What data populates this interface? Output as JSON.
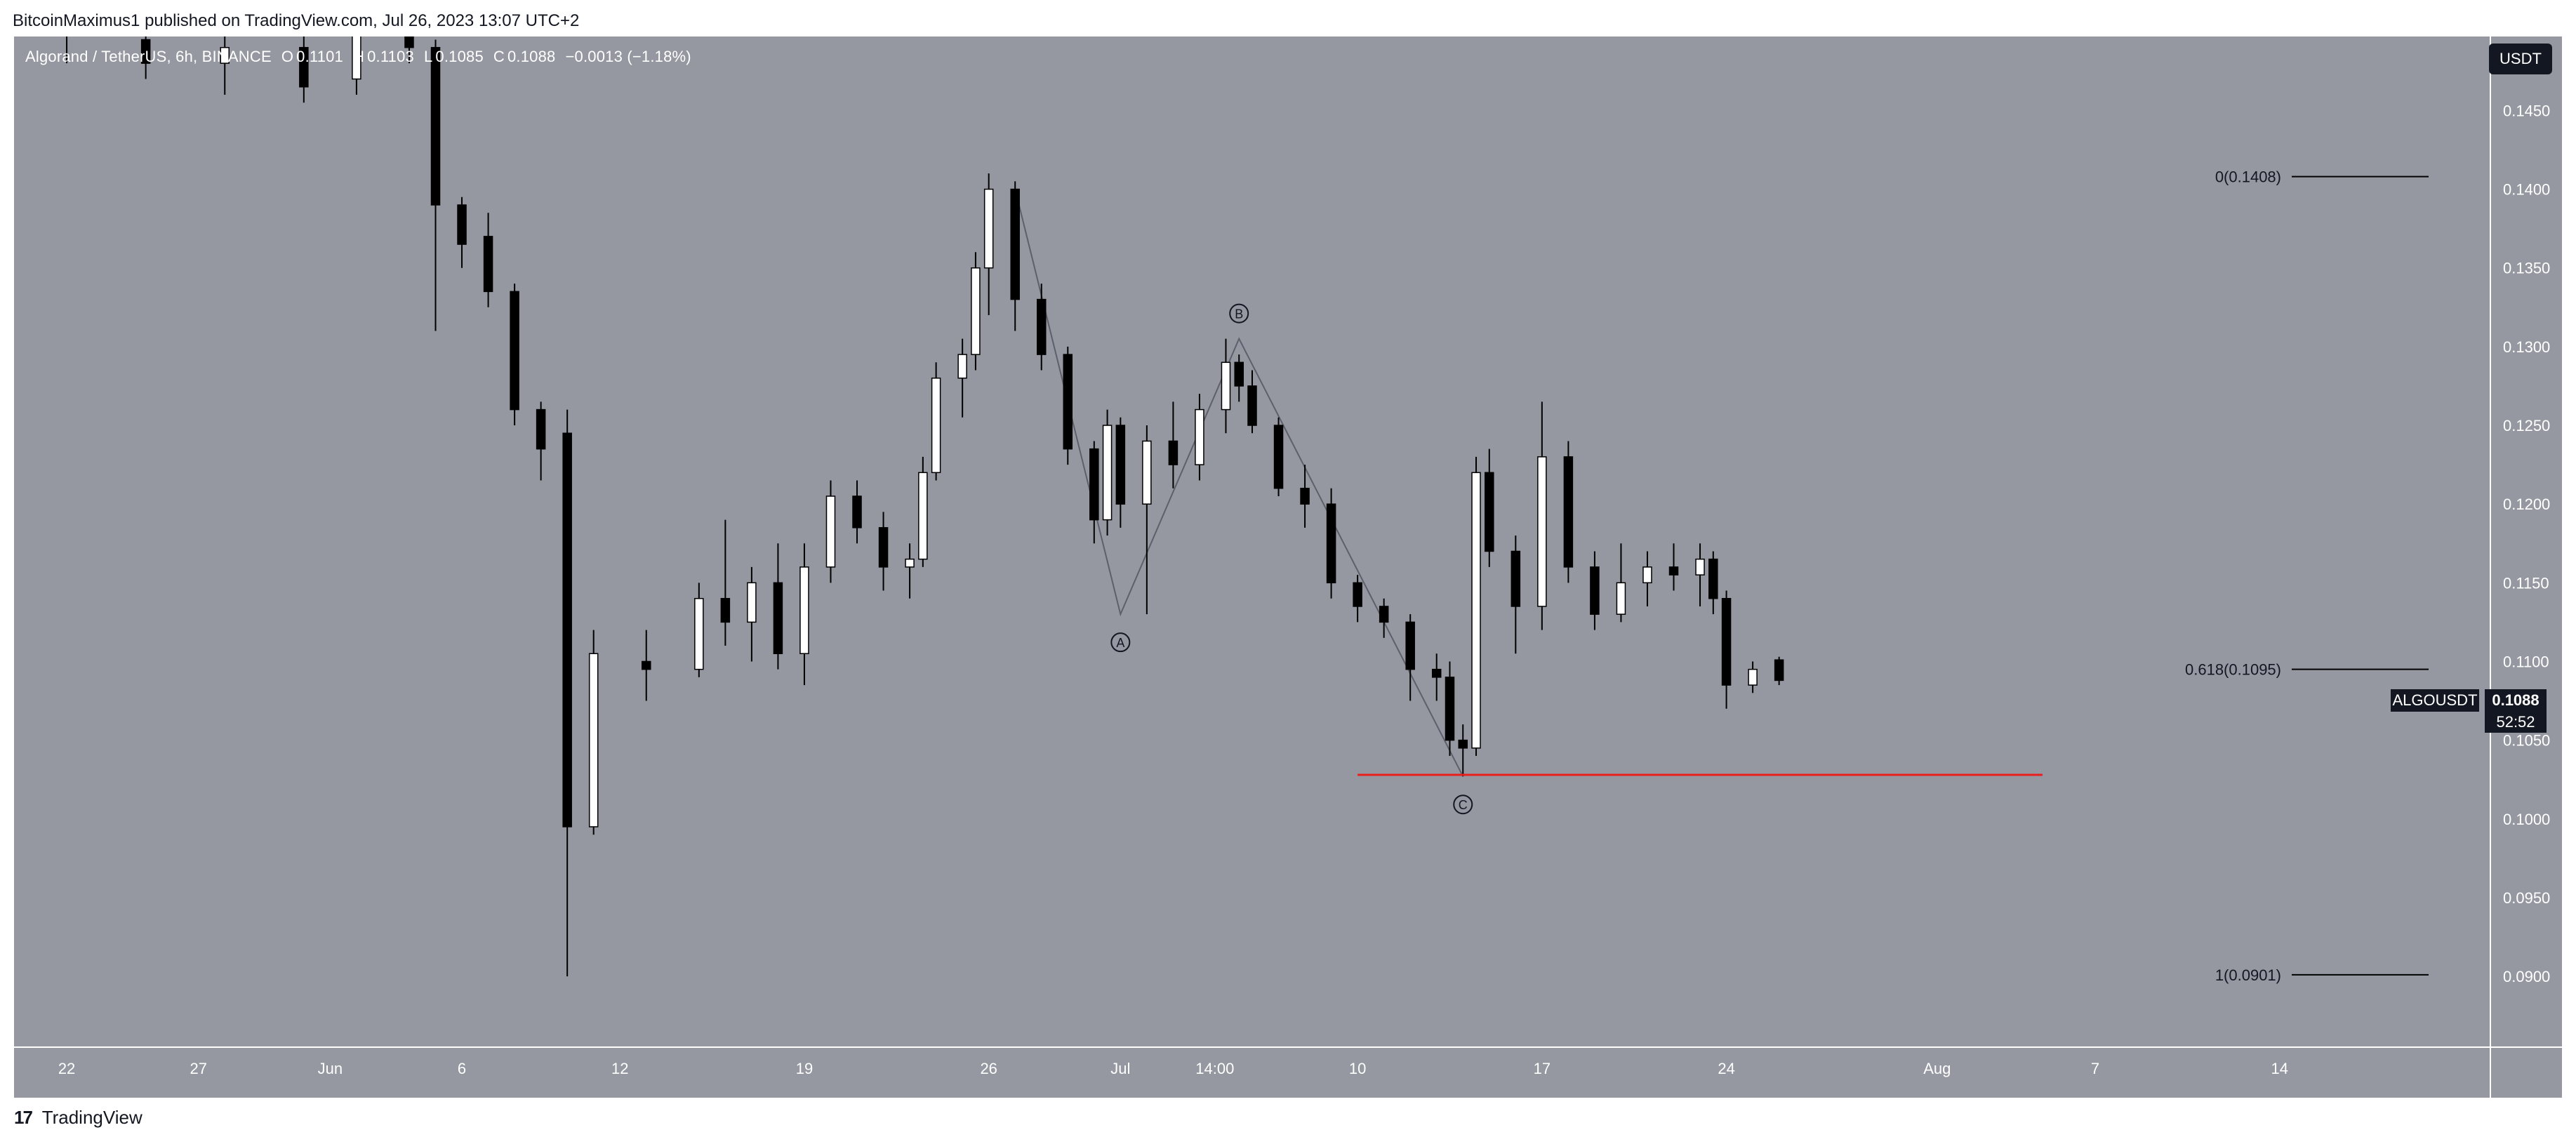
{
  "header": {
    "published_by": "BitcoinMaximus1 published on TradingView.com, Jul 26, 2023 13:07 UTC+2"
  },
  "legend": {
    "symbol": "Algorand / TetherUS, 6h, BINANCE",
    "open_label": "O",
    "open_value": "0.1101",
    "high_label": "H",
    "high_value": "0.1103",
    "low_label": "L",
    "low_value": "0.1085",
    "close_label": "C",
    "close_value": "0.1088",
    "change": "−0.0013 (−1.18%)"
  },
  "currency_badge": "USDT",
  "price_tag": {
    "symbol": "ALGOUSDT",
    "price": "0.1088",
    "countdown": "52:52"
  },
  "footer": {
    "brand": "TradingView",
    "logo_glyph": "17"
  },
  "colors": {
    "background": "#9598a1",
    "candle_up": "#ffffff",
    "candle_down": "#000000",
    "support_line": "#e91e1e",
    "wave_line": "#5d606b"
  },
  "chart_data": {
    "type": "candlestick",
    "title": "",
    "interval": "6h",
    "y_axis": {
      "ticks": [
        "0.1450",
        "0.1400",
        "0.1350",
        "0.1300",
        "0.1250",
        "0.1200",
        "0.1150",
        "0.1100",
        "0.1050",
        "0.1000",
        "0.0950",
        "0.0900"
      ],
      "range": [
        0.0855,
        0.1497
      ]
    },
    "x_axis": {
      "ticks": [
        "22",
        "27",
        "Jun",
        "6",
        "12",
        "19",
        "26",
        "Jul",
        "14:00",
        "10",
        "17",
        "24",
        "Aug",
        "7",
        "14"
      ],
      "range": [
        "2023-05-20",
        "2023-08-22"
      ]
    },
    "candles": [
      {
        "date": "2023-05-22",
        "open": 0.151,
        "high": 0.153,
        "low": 0.148,
        "close": 0.15
      },
      {
        "date": "2023-05-25",
        "open": 0.1495,
        "high": 0.151,
        "low": 0.147,
        "close": 0.148
      },
      {
        "date": "2023-05-28",
        "open": 0.148,
        "high": 0.15,
        "low": 0.146,
        "close": 0.149
      },
      {
        "date": "2023-05-31",
        "open": 0.149,
        "high": 0.1505,
        "low": 0.1455,
        "close": 0.1465
      },
      {
        "date": "2023-06-02",
        "open": 0.147,
        "high": 0.151,
        "low": 0.146,
        "close": 0.15
      },
      {
        "date": "2023-06-04",
        "open": 0.15,
        "high": 0.152,
        "low": 0.148,
        "close": 0.149
      },
      {
        "date": "2023-06-05",
        "open": 0.149,
        "high": 0.1495,
        "low": 0.131,
        "close": 0.139
      },
      {
        "date": "2023-06-06",
        "open": 0.139,
        "high": 0.1395,
        "low": 0.135,
        "close": 0.1365
      },
      {
        "date": "2023-06-07",
        "open": 0.137,
        "high": 0.1385,
        "low": 0.1325,
        "close": 0.1335
      },
      {
        "date": "2023-06-08",
        "open": 0.1335,
        "high": 0.134,
        "low": 0.125,
        "close": 0.126
      },
      {
        "date": "2023-06-09",
        "open": 0.126,
        "high": 0.1265,
        "low": 0.1215,
        "close": 0.1235
      },
      {
        "date": "2023-06-10",
        "open": 0.1245,
        "high": 0.126,
        "low": 0.09,
        "close": 0.0995
      },
      {
        "date": "2023-06-11",
        "open": 0.0995,
        "high": 0.112,
        "low": 0.099,
        "close": 0.1105
      },
      {
        "date": "2023-06-13",
        "open": 0.11,
        "high": 0.112,
        "low": 0.1075,
        "close": 0.1095
      },
      {
        "date": "2023-06-15",
        "open": 0.1095,
        "high": 0.115,
        "low": 0.109,
        "close": 0.114
      },
      {
        "date": "2023-06-16",
        "open": 0.114,
        "high": 0.119,
        "low": 0.111,
        "close": 0.1125
      },
      {
        "date": "2023-06-17",
        "open": 0.1125,
        "high": 0.116,
        "low": 0.11,
        "close": 0.115
      },
      {
        "date": "2023-06-18",
        "open": 0.115,
        "high": 0.1175,
        "low": 0.1095,
        "close": 0.1105
      },
      {
        "date": "2023-06-19",
        "open": 0.1105,
        "high": 0.1175,
        "low": 0.1085,
        "close": 0.116
      },
      {
        "date": "2023-06-20",
        "open": 0.116,
        "high": 0.1215,
        "low": 0.115,
        "close": 0.1205
      },
      {
        "date": "2023-06-21",
        "open": 0.1205,
        "high": 0.1215,
        "low": 0.1175,
        "close": 0.1185
      },
      {
        "date": "2023-06-22",
        "open": 0.1185,
        "high": 0.1195,
        "low": 0.1145,
        "close": 0.116
      },
      {
        "date": "2023-06-23",
        "open": 0.116,
        "high": 0.1175,
        "low": 0.114,
        "close": 0.1165
      },
      {
        "date": "2023-06-23T12",
        "open": 0.1165,
        "high": 0.123,
        "low": 0.116,
        "close": 0.122
      },
      {
        "date": "2023-06-24",
        "open": 0.122,
        "high": 0.129,
        "low": 0.1215,
        "close": 0.128
      },
      {
        "date": "2023-06-25",
        "open": 0.128,
        "high": 0.1305,
        "low": 0.1255,
        "close": 0.1295
      },
      {
        "date": "2023-06-25T12",
        "open": 0.1295,
        "high": 0.136,
        "low": 0.1285,
        "close": 0.135
      },
      {
        "date": "2023-06-26",
        "open": 0.135,
        "high": 0.141,
        "low": 0.132,
        "close": 0.14
      },
      {
        "date": "2023-06-27",
        "open": 0.14,
        "high": 0.1405,
        "low": 0.131,
        "close": 0.133
      },
      {
        "date": "2023-06-28",
        "open": 0.133,
        "high": 0.134,
        "low": 0.1285,
        "close": 0.1295
      },
      {
        "date": "2023-06-29",
        "open": 0.1295,
        "high": 0.13,
        "low": 0.1225,
        "close": 0.1235
      },
      {
        "date": "2023-06-30",
        "open": 0.1235,
        "high": 0.124,
        "low": 0.1175,
        "close": 0.119
      },
      {
        "date": "2023-06-30T12",
        "open": 0.119,
        "high": 0.126,
        "low": 0.118,
        "close": 0.125
      },
      {
        "date": "2023-07-01",
        "open": 0.125,
        "high": 0.1255,
        "low": 0.1185,
        "close": 0.12
      },
      {
        "date": "2023-07-02",
        "open": 0.12,
        "high": 0.125,
        "low": 0.113,
        "close": 0.124
      },
      {
        "date": "2023-07-03",
        "open": 0.124,
        "high": 0.1265,
        "low": 0.121,
        "close": 0.1225
      },
      {
        "date": "2023-07-04",
        "open": 0.1225,
        "high": 0.127,
        "low": 0.1215,
        "close": 0.126
      },
      {
        "date": "2023-07-05",
        "open": 0.126,
        "high": 0.1305,
        "low": 0.1245,
        "close": 0.129
      },
      {
        "date": "2023-07-05T12",
        "open": 0.129,
        "high": 0.1295,
        "low": 0.1265,
        "close": 0.1275
      },
      {
        "date": "2023-07-06",
        "open": 0.1275,
        "high": 0.1285,
        "low": 0.1245,
        "close": 0.125
      },
      {
        "date": "2023-07-07",
        "open": 0.125,
        "high": 0.1255,
        "low": 0.1205,
        "close": 0.121
      },
      {
        "date": "2023-07-08",
        "open": 0.121,
        "high": 0.1225,
        "low": 0.1185,
        "close": 0.12
      },
      {
        "date": "2023-07-09",
        "open": 0.12,
        "high": 0.121,
        "low": 0.114,
        "close": 0.115
      },
      {
        "date": "2023-07-10",
        "open": 0.115,
        "high": 0.1155,
        "low": 0.1125,
        "close": 0.1135
      },
      {
        "date": "2023-07-11",
        "open": 0.1135,
        "high": 0.114,
        "low": 0.1115,
        "close": 0.1125
      },
      {
        "date": "2023-07-12",
        "open": 0.1125,
        "high": 0.113,
        "low": 0.1075,
        "close": 0.1095
      },
      {
        "date": "2023-07-13",
        "open": 0.1095,
        "high": 0.1105,
        "low": 0.1075,
        "close": 0.109
      },
      {
        "date": "2023-07-13T12",
        "open": 0.109,
        "high": 0.11,
        "low": 0.104,
        "close": 0.105
      },
      {
        "date": "2023-07-14",
        "open": 0.105,
        "high": 0.106,
        "low": 0.1027,
        "close": 0.1045
      },
      {
        "date": "2023-07-14T12",
        "open": 0.1045,
        "high": 0.123,
        "low": 0.104,
        "close": 0.122
      },
      {
        "date": "2023-07-15",
        "open": 0.122,
        "high": 0.1235,
        "low": 0.116,
        "close": 0.117
      },
      {
        "date": "2023-07-16",
        "open": 0.117,
        "high": 0.118,
        "low": 0.1105,
        "close": 0.1135
      },
      {
        "date": "2023-07-17",
        "open": 0.1135,
        "high": 0.1265,
        "low": 0.112,
        "close": 0.123
      },
      {
        "date": "2023-07-18",
        "open": 0.123,
        "high": 0.124,
        "low": 0.115,
        "close": 0.116
      },
      {
        "date": "2023-07-19",
        "open": 0.116,
        "high": 0.117,
        "low": 0.112,
        "close": 0.113
      },
      {
        "date": "2023-07-20",
        "open": 0.113,
        "high": 0.1175,
        "low": 0.1125,
        "close": 0.115
      },
      {
        "date": "2023-07-21",
        "open": 0.115,
        "high": 0.117,
        "low": 0.1135,
        "close": 0.116
      },
      {
        "date": "2023-07-22",
        "open": 0.116,
        "high": 0.1175,
        "low": 0.1145,
        "close": 0.1155
      },
      {
        "date": "2023-07-23",
        "open": 0.1155,
        "high": 0.1175,
        "low": 0.1135,
        "close": 0.1165
      },
      {
        "date": "2023-07-23T12",
        "open": 0.1165,
        "high": 0.117,
        "low": 0.113,
        "close": 0.114
      },
      {
        "date": "2023-07-24",
        "open": 0.114,
        "high": 0.1145,
        "low": 0.107,
        "close": 0.1085
      },
      {
        "date": "2023-07-25",
        "open": 0.1085,
        "high": 0.11,
        "low": 0.108,
        "close": 0.1095
      },
      {
        "date": "2023-07-26",
        "open": 0.1101,
        "high": 0.1103,
        "low": 0.1085,
        "close": 0.1088
      }
    ],
    "annotations": {
      "waves": [
        {
          "label": "A",
          "date": "2023-07-01",
          "price": 0.113,
          "label_position": "below"
        },
        {
          "label": "B",
          "date": "2023-07-05T12",
          "price": 0.1305,
          "label_position": "above"
        },
        {
          "label": "C",
          "date": "2023-07-14",
          "price": 0.1027,
          "label_position": "below"
        }
      ],
      "wave_path": [
        {
          "date": "2023-06-27",
          "price": 0.14
        },
        {
          "date": "2023-07-01",
          "price": 0.113
        },
        {
          "date": "2023-07-05T12",
          "price": 0.1305
        },
        {
          "date": "2023-07-14",
          "price": 0.1027
        }
      ],
      "fibonacci": [
        {
          "label": "0(0.1408)",
          "price": 0.1408
        },
        {
          "label": "0.618(0.1095)",
          "price": 0.1095
        },
        {
          "label": "1(0.0901)",
          "price": 0.0901
        }
      ],
      "support_line": {
        "price": 0.1028,
        "from": "2023-07-10",
        "to": "2023-08-05"
      }
    }
  }
}
